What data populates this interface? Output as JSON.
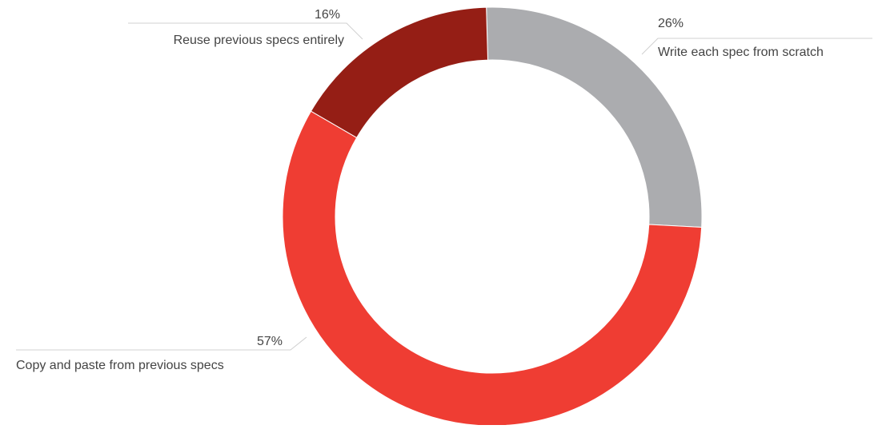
{
  "chart_data": {
    "type": "pie",
    "style": "donut",
    "slices": [
      {
        "label": "Write each spec from scratch",
        "value": 26,
        "value_label": "26%",
        "color": "#abacaf"
      },
      {
        "label": "Copy and paste from previous specs",
        "value": 57,
        "value_label": "57%",
        "color": "#ef3d33"
      },
      {
        "label": "Reuse previous specs entirely",
        "value": 16,
        "value_label": "16%",
        "color": "#951e15"
      }
    ]
  }
}
